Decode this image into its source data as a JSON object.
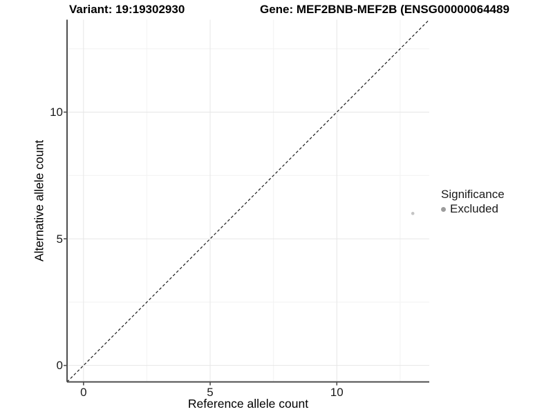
{
  "titles": {
    "variant": "Variant: 19:19302930",
    "gene": "Gene: MEF2BNB-MEF2B (ENSG00000064489"
  },
  "chart_data": {
    "type": "scatter",
    "xlabel": "Reference allele count",
    "ylabel": "Alternative allele count",
    "xlim": [
      -0.65,
      13.65
    ],
    "ylim": [
      -0.65,
      13.65
    ],
    "x_ticks": [
      0,
      5,
      10
    ],
    "y_ticks": [
      0,
      5,
      10
    ],
    "x_minor_ticks": [
      2.5,
      7.5,
      12.5
    ],
    "y_minor_ticks": [
      2.5,
      7.5,
      12.5
    ],
    "grid": true,
    "identity_line": {
      "style": "dashed",
      "from": [
        -0.65,
        -0.65
      ],
      "to": [
        13.65,
        13.65
      ],
      "color": "#1a1a1a"
    },
    "points": [
      {
        "x": 13,
        "y": 6,
        "significance": "Excluded",
        "color": "#c4c4c4",
        "radius": 2.3
      }
    ],
    "legend": {
      "title": "Significance",
      "position": "right",
      "items": [
        {
          "label": "Excluded",
          "color": "#9c9c9c"
        }
      ]
    }
  },
  "colors": {
    "background": "#ffffff",
    "axis_line": "#4d4d4d",
    "tick_text": "#1a1a1a",
    "grid_major": "#e6e6e6",
    "grid_minor": "#f2f2f2",
    "point_excluded": "#c4c4c4",
    "legend_dot": "#9c9c9c"
  }
}
